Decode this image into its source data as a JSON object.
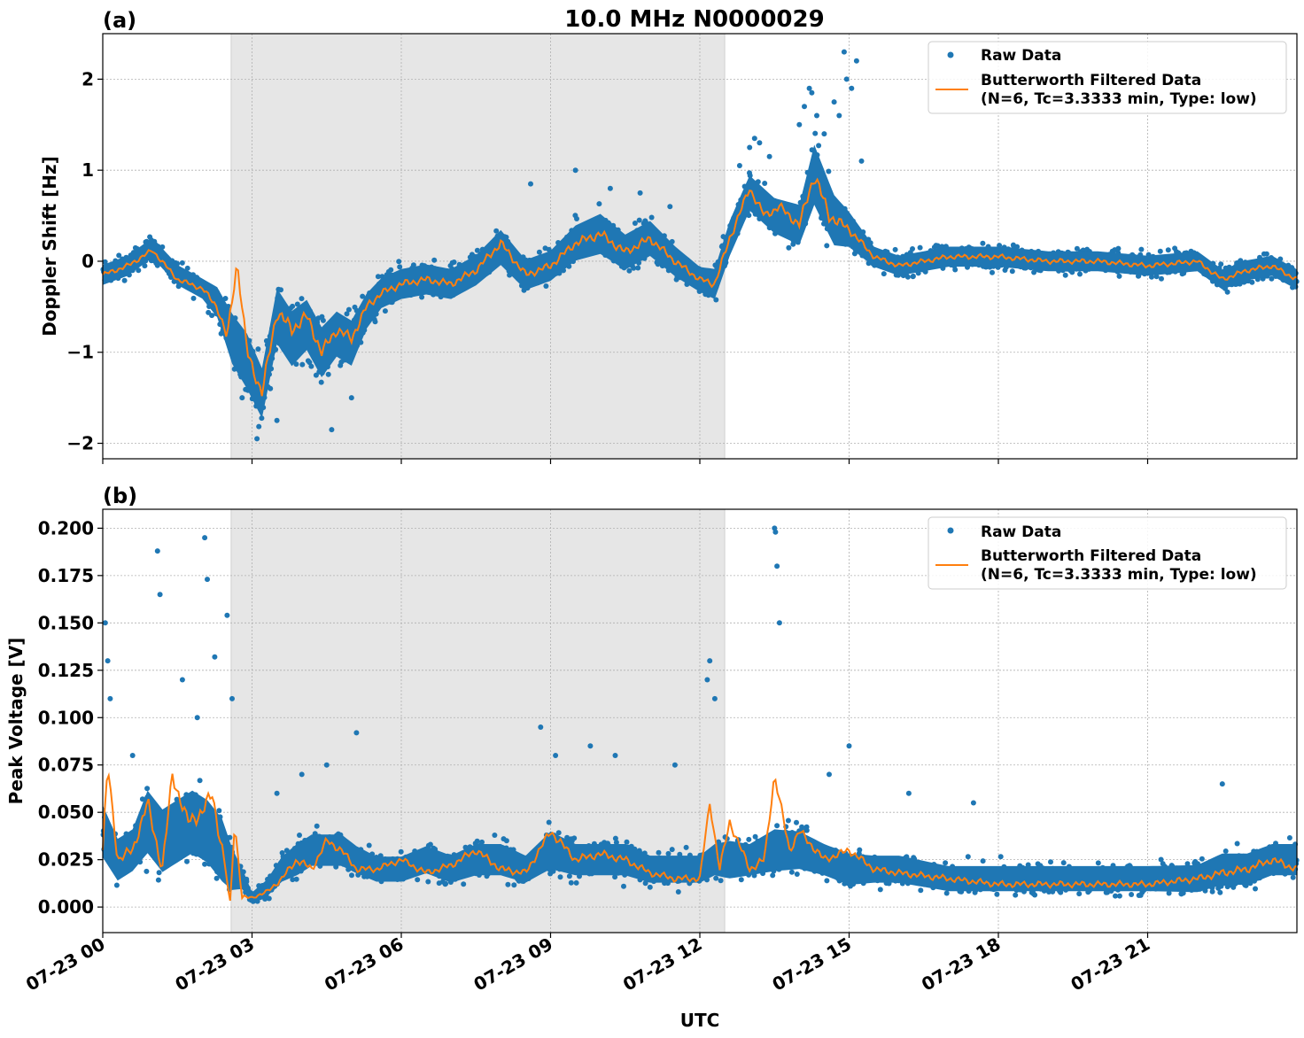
{
  "figure": {
    "title": "10.0 MHz N0000029",
    "xlabel": "UTC"
  },
  "legend": {
    "raw": "Raw Data",
    "filtered_line1": "Butterworth Filtered Data",
    "filtered_line2": "(N=6, Tc=3.3333 min, Type: low)"
  },
  "colors": {
    "raw": "#1f77b4",
    "filtered": "#ff7f0e",
    "shade": "#e6e6e6",
    "grid": "#b0b0b0"
  },
  "chart_data": [
    {
      "type": "scatter",
      "panel": "(a)",
      "ylabel": "Doppler Shift [Hz]",
      "ylim": [
        -2.17,
        2.5
      ],
      "yticks": [
        2,
        1,
        0,
        -1,
        -2
      ],
      "ytick_labels": [
        "2",
        "1",
        "0",
        "−1",
        "−2"
      ],
      "xlim_hours": [
        0,
        24
      ],
      "xticks_hours": [
        0,
        3,
        6,
        9,
        12,
        15,
        18,
        21
      ],
      "shaded_interval_hours": [
        2.58,
        12.5
      ],
      "grid": true,
      "legend_position": "top-right",
      "series": [
        {
          "name": "Raw Data",
          "style": "points",
          "x": [
            0,
            0.5,
            1,
            1.5,
            2,
            2.3,
            2.6,
            2.9,
            3.2,
            3.5,
            3.8,
            4.1,
            4.4,
            4.7,
            5,
            5.3,
            5.6,
            6,
            6.5,
            7,
            7.5,
            8,
            8.5,
            9,
            9.5,
            10,
            10.5,
            11,
            11.5,
            12,
            12.3,
            12.6,
            13,
            13.5,
            14,
            14.3,
            14.7,
            15,
            15.5,
            16,
            17,
            18,
            19,
            20,
            21,
            22,
            22.5,
            23,
            23.5,
            24
          ],
          "y": [
            -0.15,
            -0.05,
            0.15,
            -0.15,
            -0.3,
            -0.45,
            -0.85,
            -1.1,
            -1.45,
            -0.6,
            -0.85,
            -0.7,
            -1.0,
            -0.8,
            -0.9,
            -0.55,
            -0.35,
            -0.25,
            -0.2,
            -0.25,
            -0.1,
            0.15,
            -0.15,
            -0.05,
            0.2,
            0.3,
            0.1,
            0.25,
            0.0,
            -0.2,
            -0.25,
            0.25,
            0.75,
            0.5,
            0.4,
            0.95,
            0.45,
            0.35,
            0.05,
            -0.05,
            0.05,
            0.05,
            0.0,
            0.0,
            -0.05,
            0.0,
            -0.2,
            -0.1,
            -0.05,
            -0.2
          ],
          "spread": [
            0.2,
            0.2,
            0.2,
            0.2,
            0.2,
            0.3,
            0.5,
            0.55,
            0.5,
            0.55,
            0.55,
            0.5,
            0.5,
            0.45,
            0.45,
            0.35,
            0.3,
            0.3,
            0.3,
            0.3,
            0.3,
            0.35,
            0.3,
            0.3,
            0.35,
            0.4,
            0.35,
            0.35,
            0.3,
            0.25,
            0.3,
            0.35,
            0.35,
            0.35,
            0.4,
            0.6,
            0.5,
            0.35,
            0.2,
            0.2,
            0.2,
            0.2,
            0.2,
            0.2,
            0.2,
            0.2,
            0.2,
            0.2,
            0.2,
            0.2
          ]
        },
        {
          "name": "Butterworth Filtered Data",
          "style": "line",
          "x": [
            0,
            0.5,
            1,
            1.5,
            2,
            2.3,
            2.5,
            2.7,
            2.9,
            3.2,
            3.5,
            3.8,
            4.1,
            4.4,
            4.7,
            5,
            5.3,
            5.6,
            6,
            6.5,
            7,
            7.5,
            8,
            8.5,
            9,
            9.5,
            10,
            10.5,
            11,
            11.5,
            12,
            12.3,
            12.6,
            13,
            13.3,
            13.6,
            14,
            14.3,
            14.6,
            15,
            15.5,
            16,
            17,
            18,
            19,
            20,
            21,
            22,
            22.5,
            23,
            23.5,
            24
          ],
          "y": [
            -0.15,
            -0.05,
            0.12,
            -0.2,
            -0.3,
            -0.5,
            -0.85,
            0.0,
            -1.0,
            -1.45,
            -0.55,
            -0.75,
            -0.6,
            -1.0,
            -0.75,
            -0.85,
            -0.5,
            -0.35,
            -0.25,
            -0.2,
            -0.25,
            -0.1,
            0.2,
            -0.15,
            -0.05,
            0.2,
            0.3,
            0.1,
            0.25,
            0.0,
            -0.2,
            -0.25,
            0.25,
            0.8,
            0.5,
            0.6,
            0.4,
            0.95,
            0.5,
            0.35,
            0.05,
            -0.05,
            0.05,
            0.05,
            0.0,
            0.0,
            -0.05,
            0.0,
            -0.2,
            -0.1,
            -0.05,
            -0.2
          ]
        }
      ],
      "outliers": {
        "x": [
          14.0,
          14.1,
          14.2,
          14.25,
          14.35,
          14.5,
          14.7,
          14.8,
          14.9,
          14.95,
          15.05,
          15.15,
          15.25,
          13.0,
          13.1,
          13.2,
          13.4,
          12.8,
          8.6,
          9.5,
          10.2,
          10.8,
          11.4,
          3.5,
          4.6,
          2.8,
          3.1,
          5.0
        ],
        "y": [
          1.5,
          1.7,
          1.9,
          1.85,
          1.6,
          1.4,
          1.75,
          1.6,
          2.3,
          2.0,
          1.9,
          2.2,
          1.1,
          1.25,
          1.35,
          1.3,
          1.15,
          1.05,
          0.85,
          1.0,
          0.8,
          0.75,
          0.6,
          -1.75,
          -1.85,
          -1.5,
          -1.95,
          -1.5
        ]
      }
    },
    {
      "type": "scatter",
      "panel": "(b)",
      "ylabel": "Peak Voltage [V]",
      "ylim": [
        -0.0135,
        0.21
      ],
      "yticks": [
        0.2,
        0.175,
        0.15,
        0.125,
        0.1,
        0.075,
        0.05,
        0.025,
        0.0
      ],
      "ytick_labels": [
        "0.200",
        "0.175",
        "0.150",
        "0.125",
        "0.100",
        "0.075",
        "0.050",
        "0.025",
        "0.000"
      ],
      "xlim_hours": [
        0,
        24
      ],
      "xticks_hours": [
        0,
        3,
        6,
        9,
        12,
        15,
        18,
        21
      ],
      "xtick_labels": [
        "07-23 00",
        "07-23 03",
        "07-23 06",
        "07-23 09",
        "07-23 12",
        "07-23 15",
        "07-23 18",
        "07-23 21"
      ],
      "shaded_interval_hours": [
        2.58,
        12.5
      ],
      "grid": true,
      "legend_position": "top-right",
      "series": [
        {
          "name": "Raw Data",
          "style": "points",
          "x": [
            0,
            0.3,
            0.6,
            0.9,
            1.2,
            1.5,
            1.8,
            2.1,
            2.4,
            2.6,
            2.8,
            3.0,
            3.3,
            3.6,
            3.9,
            4.2,
            4.5,
            4.8,
            5.1,
            5.5,
            6,
            6.5,
            7,
            7.5,
            8,
            8.5,
            9,
            9.5,
            10,
            10.5,
            11,
            11.5,
            12,
            12.3,
            12.6,
            13,
            13.5,
            14,
            14.5,
            15,
            15.5,
            16,
            17,
            18,
            19,
            20,
            21,
            22,
            22.5,
            23,
            23.5,
            24
          ],
          "y": [
            0.04,
            0.025,
            0.03,
            0.045,
            0.035,
            0.04,
            0.045,
            0.04,
            0.03,
            0.02,
            0.015,
            0.005,
            0.01,
            0.02,
            0.025,
            0.03,
            0.03,
            0.03,
            0.025,
            0.02,
            0.02,
            0.025,
            0.02,
            0.025,
            0.025,
            0.02,
            0.03,
            0.025,
            0.025,
            0.025,
            0.02,
            0.02,
            0.02,
            0.025,
            0.025,
            0.025,
            0.03,
            0.03,
            0.025,
            0.02,
            0.02,
            0.02,
            0.015,
            0.015,
            0.015,
            0.015,
            0.015,
            0.015,
            0.02,
            0.02,
            0.025,
            0.025
          ],
          "spread": [
            0.025,
            0.02,
            0.02,
            0.03,
            0.03,
            0.03,
            0.03,
            0.03,
            0.03,
            0.02,
            0.01,
            0.005,
            0.008,
            0.012,
            0.015,
            0.015,
            0.015,
            0.015,
            0.013,
            0.012,
            0.012,
            0.013,
            0.013,
            0.015,
            0.015,
            0.013,
            0.018,
            0.015,
            0.015,
            0.015,
            0.013,
            0.013,
            0.013,
            0.015,
            0.018,
            0.015,
            0.02,
            0.018,
            0.015,
            0.015,
            0.013,
            0.013,
            0.012,
            0.012,
            0.012,
            0.012,
            0.012,
            0.013,
            0.015,
            0.015,
            0.015,
            0.015
          ]
        },
        {
          "name": "Butterworth Filtered Data",
          "style": "line",
          "x": [
            0,
            0.1,
            0.3,
            0.6,
            0.9,
            1.2,
            1.4,
            1.7,
            2.0,
            2.2,
            2.4,
            2.5,
            2.55,
            2.65,
            2.8,
            3.0,
            3.3,
            3.6,
            3.9,
            4.2,
            4.5,
            4.8,
            5.1,
            5.5,
            6,
            6.5,
            7,
            7.5,
            8,
            8.5,
            9,
            9.5,
            10,
            10.5,
            11,
            11.5,
            12,
            12.2,
            12.4,
            12.6,
            13,
            13.3,
            13.5,
            13.8,
            14,
            14.5,
            15,
            15.5,
            16,
            17,
            18,
            19,
            20,
            21,
            22,
            22.5,
            23,
            23.5,
            24
          ],
          "y": [
            0.03,
            0.075,
            0.025,
            0.03,
            0.055,
            0.02,
            0.07,
            0.045,
            0.05,
            0.06,
            0.03,
            0.015,
            -0.004,
            0.045,
            0.005,
            0.005,
            0.008,
            0.015,
            0.025,
            0.02,
            0.035,
            0.03,
            0.02,
            0.02,
            0.025,
            0.018,
            0.022,
            0.03,
            0.02,
            0.018,
            0.04,
            0.025,
            0.028,
            0.025,
            0.018,
            0.015,
            0.015,
            0.055,
            0.02,
            0.045,
            0.02,
            0.025,
            0.07,
            0.03,
            0.04,
            0.025,
            0.03,
            0.02,
            0.018,
            0.015,
            0.012,
            0.012,
            0.012,
            0.012,
            0.015,
            0.018,
            0.02,
            0.025,
            0.02
          ]
        }
      ],
      "outliers": {
        "x": [
          0.05,
          0.1,
          0.15,
          1.1,
          1.15,
          2.05,
          2.1,
          2.25,
          2.5,
          2.6,
          3.5,
          4.0,
          4.5,
          5.1,
          8.8,
          9.1,
          9.8,
          10.3,
          11.5,
          12.15,
          12.2,
          12.3,
          13.5,
          13.52,
          13.55,
          13.6,
          14.6,
          15.0,
          16.2,
          17.5,
          22.5,
          0.6,
          1.6,
          1.9
        ],
        "y": [
          0.15,
          0.13,
          0.11,
          0.188,
          0.165,
          0.195,
          0.173,
          0.132,
          0.154,
          0.11,
          0.06,
          0.07,
          0.075,
          0.092,
          0.095,
          0.08,
          0.085,
          0.08,
          0.075,
          0.12,
          0.13,
          0.11,
          0.2,
          0.198,
          0.18,
          0.15,
          0.07,
          0.085,
          0.06,
          0.055,
          0.065,
          0.08,
          0.12,
          0.1
        ]
      }
    }
  ]
}
